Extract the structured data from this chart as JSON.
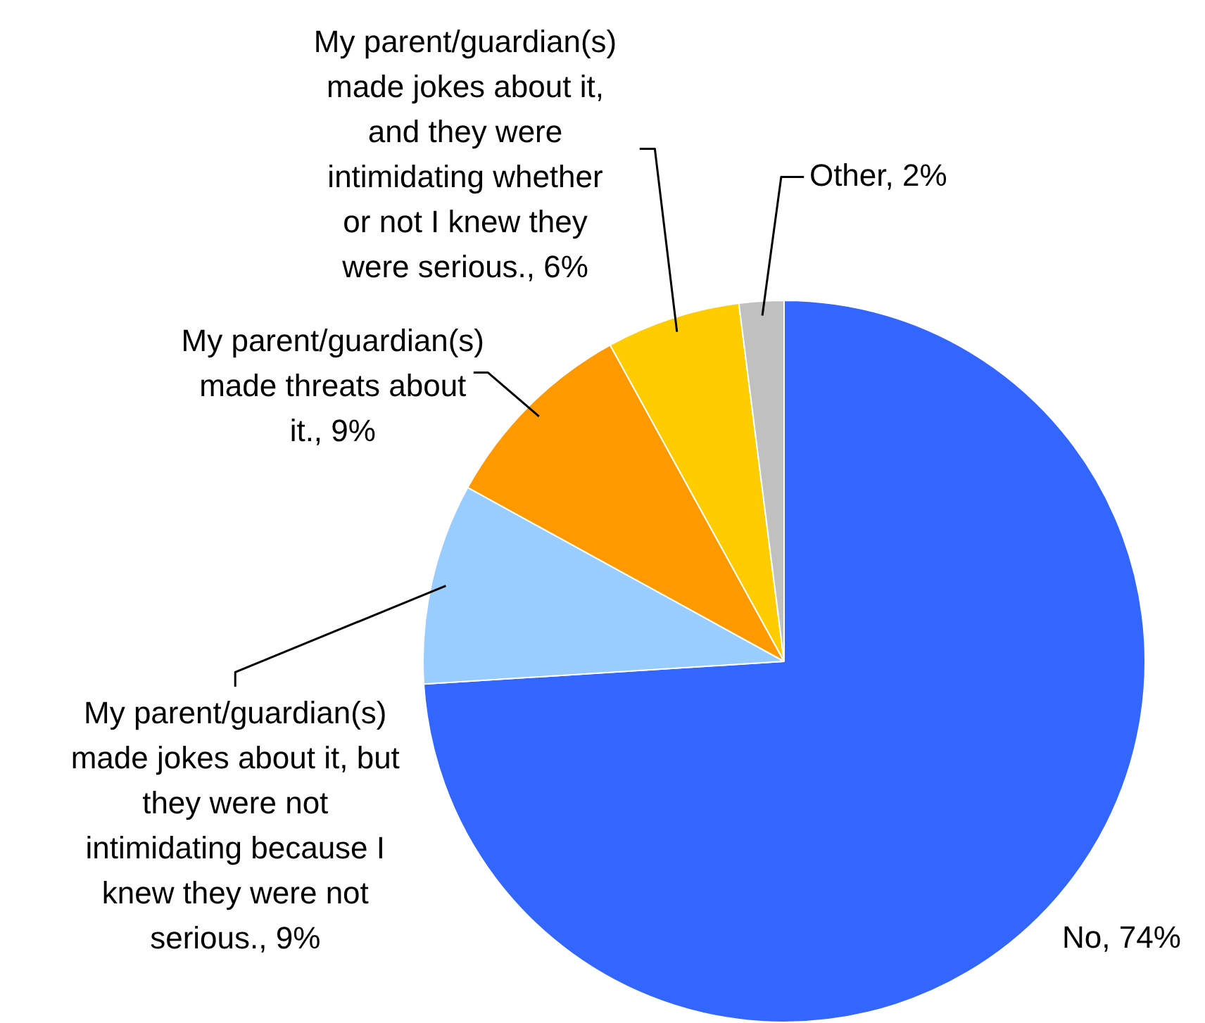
{
  "chart_data": {
    "type": "pie",
    "categories": [
      "No",
      "My parent/guardian(s) made jokes about it, but they were not intimidating because I knew they were not serious.",
      "My parent/guardian(s) made threats about it.",
      "My parent/guardian(s) made jokes about it, and they were intimidating whether or not I knew they were serious.",
      "Other"
    ],
    "values": [
      74,
      9,
      9,
      6,
      2
    ],
    "value_labels": [
      "74%",
      "9%",
      "9%",
      "6%",
      "2%"
    ],
    "colors": [
      "#3366ff",
      "#99ccff",
      "#ff9900",
      "#ffcc00",
      "#c0c0c0"
    ],
    "legend": false
  }
}
